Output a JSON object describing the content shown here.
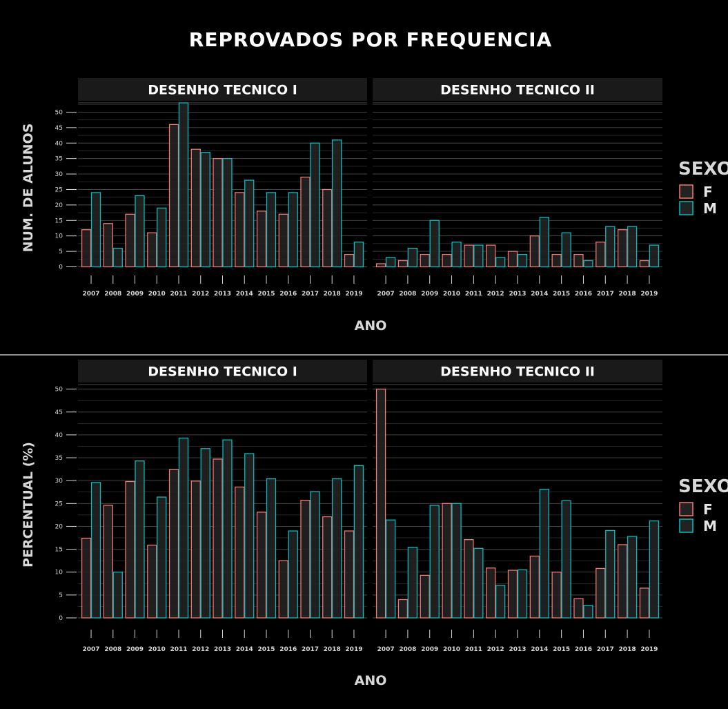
{
  "title": "REPROVADOS POR FREQUENCIA",
  "colors": {
    "F": "#f8766d",
    "M": "#00bfc4",
    "background": "#000000",
    "strip": "#1a1a1a",
    "grid": "#4d4d4d",
    "divider": "#bfbfbf"
  },
  "legend": {
    "title": "SEXO",
    "items": [
      "F",
      "M"
    ]
  },
  "chart_data": [
    {
      "type": "bar",
      "ylabel": "NUM. DE ALUNOS",
      "xlabel": "ANO",
      "ylim": [
        0,
        53
      ],
      "yticks": [
        0,
        5,
        10,
        15,
        20,
        25,
        30,
        35,
        40,
        45,
        50
      ],
      "categories": [
        "2007",
        "2008",
        "2009",
        "2010",
        "2011",
        "2012",
        "2013",
        "2014",
        "2015",
        "2016",
        "2017",
        "2018",
        "2019"
      ],
      "legend": "right",
      "panels": [
        {
          "strip": "DESENHO TECNICO I",
          "series": [
            {
              "name": "F",
              "values": [
                12,
                14,
                17,
                11,
                46,
                38,
                35,
                24,
                18,
                17,
                29,
                25,
                4
              ]
            },
            {
              "name": "M",
              "values": [
                24,
                6,
                23,
                19,
                53,
                37,
                35,
                28,
                24,
                24,
                40,
                41,
                8
              ]
            }
          ]
        },
        {
          "strip": "DESENHO TECNICO II",
          "series": [
            {
              "name": "F",
              "values": [
                1,
                2,
                4,
                4,
                7,
                7,
                5,
                10,
                4,
                4,
                8,
                12,
                2
              ]
            },
            {
              "name": "M",
              "values": [
                3,
                6,
                15,
                8,
                7,
                3,
                4,
                16,
                11,
                2,
                13,
                13,
                7
              ]
            }
          ]
        }
      ]
    },
    {
      "type": "bar",
      "ylabel": "PERCENTUAL (%)",
      "xlabel": "ANO",
      "ylim": [
        0,
        51
      ],
      "yticks": [
        0,
        5,
        10,
        15,
        20,
        25,
        30,
        35,
        40,
        45,
        50
      ],
      "categories": [
        "2007",
        "2008",
        "2009",
        "2010",
        "2011",
        "2012",
        "2013",
        "2014",
        "2015",
        "2016",
        "2017",
        "2018",
        "2019"
      ],
      "legend": "right",
      "panels": [
        {
          "strip": "DESENHO TECNICO I",
          "series": [
            {
              "name": "F",
              "values": [
                17.4,
                24.6,
                29.8,
                15.9,
                32.4,
                29.9,
                34.7,
                28.6,
                23.1,
                12.5,
                25.7,
                22.1,
                19.0
              ]
            },
            {
              "name": "M",
              "values": [
                29.6,
                10.0,
                34.3,
                26.4,
                39.3,
                37.0,
                38.9,
                35.9,
                30.4,
                19.0,
                27.6,
                30.4,
                33.3
              ]
            }
          ]
        },
        {
          "strip": "DESENHO TECNICO II",
          "series": [
            {
              "name": "F",
              "values": [
                50.0,
                4.0,
                9.3,
                25.0,
                17.1,
                10.9,
                10.4,
                13.5,
                10.0,
                4.2,
                10.8,
                16.0,
                6.5
              ]
            },
            {
              "name": "M",
              "values": [
                21.4,
                15.4,
                24.6,
                25.0,
                15.2,
                7.1,
                10.5,
                28.1,
                25.6,
                2.7,
                19.1,
                17.8,
                21.2
              ]
            }
          ]
        }
      ]
    }
  ]
}
